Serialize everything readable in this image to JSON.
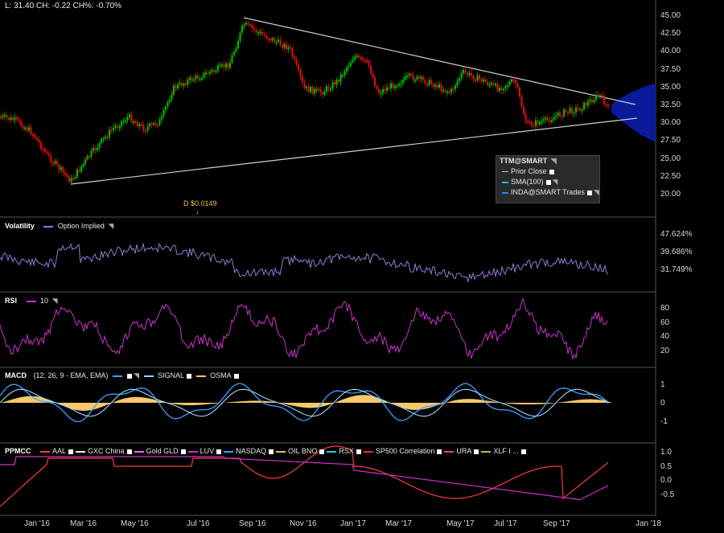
{
  "quote": {
    "text": "L: 31.40 CH: -0.22 CH%: -0.70%"
  },
  "legend": {
    "title": "TTM@SMART",
    "items": [
      {
        "label": "Prior Close",
        "color": "#bbbbbb"
      },
      {
        "label": "SMA(100)",
        "color": "#00d0e0"
      },
      {
        "label": "INDA@SMART Trades",
        "color": "#3a7bff"
      }
    ]
  },
  "dividend": {
    "label": "D $0.0149"
  },
  "price_axis": [
    "45.00",
    "42.50",
    "40.00",
    "37.50",
    "35.00",
    "32.50",
    "30.00",
    "27.50",
    "25.00",
    "22.50",
    "20.00"
  ],
  "volatility": {
    "title": "Volatility",
    "series": "Option Implied",
    "color": "#9b77d4",
    "axis": [
      "47.624%",
      "39.686%",
      "31.749%"
    ]
  },
  "rsi": {
    "title": "RSI",
    "series": "10",
    "color": "#cc33cc",
    "axis": [
      "80",
      "60",
      "40",
      "20"
    ]
  },
  "macd": {
    "title": "MACD",
    "params": "(12, 26, 9 - EMA, EMA)",
    "signal": "SIGNAL",
    "osma": "OSMA",
    "macd_color": "#3aa0ff",
    "signal_color": "#9fd8ff",
    "osma_color": "#f7c96b",
    "axis": [
      "1",
      "0",
      "-1"
    ]
  },
  "ppmcc": {
    "title": "PPMCC",
    "items": [
      "AAL",
      "GXC China",
      "Gold GLD",
      "LUV",
      "NASDAQ",
      "OIL BNO",
      "RSX",
      "SP500 Correlation",
      "URA",
      "XLF I ..."
    ],
    "axis": [
      "1.0",
      "0.5",
      "0.0",
      "-0.5"
    ]
  },
  "x_axis": [
    "Jan '16",
    "Mar '16",
    "May '16",
    "Jul '16",
    "Sep '16",
    "Nov '16",
    "Jan '17",
    "Mar '17",
    "May '17",
    "Jul '17",
    "Sep '17",
    "Jan '18"
  ],
  "colors": {
    "up": "#00c000",
    "down": "#e01010",
    "forecast_cone": "#0a1a9a",
    "trendline": "#d0d0d0"
  }
}
